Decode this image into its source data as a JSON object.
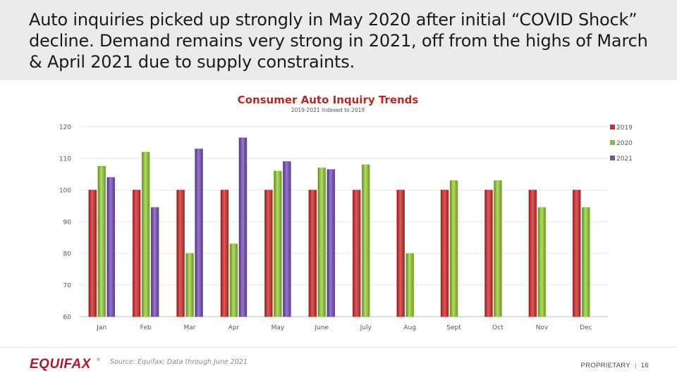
{
  "headline": "Auto inquiries picked up strongly in May 2020 after initial “COVID Shock” decline. Demand remains very strong in 2021, off from the highs of March & April 2021 due to supply constraints.",
  "footer": {
    "logo": "EQUIFAX",
    "logo_reg": "®",
    "source": "Source: Equifax; Data through June 2021",
    "proprietary": "PROPRIETARY",
    "separator": "|",
    "page_number": "16"
  },
  "chart_data": {
    "type": "bar",
    "title": "Consumer Auto Inquiry Trends",
    "subtitle": "2019-2021 Indexed to 2019",
    "xlabel": "",
    "ylabel": "",
    "ylim": [
      60,
      120
    ],
    "yticks": [
      60,
      70,
      80,
      90,
      100,
      110,
      120
    ],
    "grid": true,
    "legend_position": "right",
    "categories": [
      "Jan",
      "Feb",
      "Mar",
      "Apr",
      "May",
      "June",
      "July",
      "Aug",
      "Sept",
      "Oct",
      "Nov",
      "Dec"
    ],
    "series": [
      {
        "name": "2019",
        "color": "#c62f2f",
        "values": [
          100,
          100,
          100,
          100,
          100,
          100,
          100,
          100,
          100,
          100,
          100,
          100
        ]
      },
      {
        "name": "2020",
        "color": "#8dbb3c",
        "values": [
          107.5,
          112,
          80,
          83,
          106,
          107,
          108,
          80,
          103,
          103,
          94.5,
          94.5
        ]
      },
      {
        "name": "2021",
        "color": "#7450a8",
        "values": [
          104,
          94.5,
          113,
          116.5,
          109,
          106.5,
          null,
          null,
          null,
          null,
          null,
          null
        ]
      }
    ]
  }
}
